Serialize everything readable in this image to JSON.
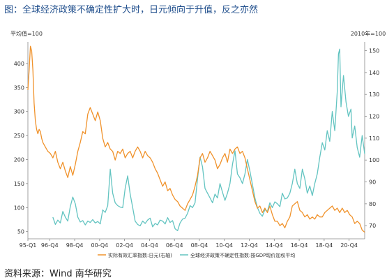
{
  "title": "图：全球经济政策不确定性扩大时，日元倾向于升值，反之亦然",
  "source": "资料来源：Wind  南华研究",
  "chart_data": {
    "type": "line",
    "left_axis": {
      "unit": "平均值=100",
      "ticks": [
        50,
        100,
        150,
        200,
        250,
        300,
        350,
        400
      ],
      "range": [
        35,
        445
      ]
    },
    "right_axis": {
      "unit": "2010年=100",
      "ticks": [
        70,
        80,
        90,
        100,
        110,
        120,
        130,
        140,
        150
      ],
      "range": [
        64,
        154
      ]
    },
    "x_ticks": [
      "95-Q1",
      "96-Q4",
      "98-Q4",
      "00-Q4",
      "02-Q4",
      "04-Q4",
      "06-Q4",
      "08-Q4",
      "10-Q4",
      "12-Q4",
      "14-Q4",
      "16-Q4",
      "18-Q4",
      "20-Q4"
    ],
    "x_tick_years": [
      1995.0,
      1996.75,
      1998.75,
      2000.75,
      2002.75,
      2004.75,
      2006.75,
      2008.75,
      2010.75,
      2012.75,
      2014.75,
      2016.75,
      2018.75,
      2020.75
    ],
    "x_range": [
      1995.0,
      2022.0
    ],
    "series": [
      {
        "name": "实际有效汇率指数:日元(右轴)",
        "axis": "right",
        "color": "#f0922b",
        "points": [
          [
            1995.0,
            132
          ],
          [
            1995.1,
            141
          ],
          [
            1995.2,
            152
          ],
          [
            1995.3,
            150
          ],
          [
            1995.4,
            141
          ],
          [
            1995.5,
            126
          ],
          [
            1995.6,
            118
          ],
          [
            1995.7,
            114
          ],
          [
            1995.8,
            112
          ],
          [
            1995.9,
            114
          ],
          [
            1996.0,
            113
          ],
          [
            1996.1,
            110
          ],
          [
            1996.2,
            108
          ],
          [
            1996.4,
            106
          ],
          [
            1996.6,
            104
          ],
          [
            1996.8,
            103
          ],
          [
            1997.0,
            101
          ],
          [
            1997.2,
            104
          ],
          [
            1997.4,
            99
          ],
          [
            1997.6,
            96
          ],
          [
            1997.8,
            99
          ],
          [
            1998.0,
            95
          ],
          [
            1998.2,
            92
          ],
          [
            1998.4,
            97
          ],
          [
            1998.6,
            93
          ],
          [
            1998.8,
            98
          ],
          [
            1999.0,
            104
          ],
          [
            1999.2,
            108
          ],
          [
            1999.4,
            113
          ],
          [
            1999.6,
            112
          ],
          [
            1999.8,
            121
          ],
          [
            2000.0,
            124
          ],
          [
            2000.2,
            121
          ],
          [
            2000.4,
            118
          ],
          [
            2000.6,
            122
          ],
          [
            2000.8,
            118
          ],
          [
            2001.0,
            110
          ],
          [
            2001.2,
            106
          ],
          [
            2001.4,
            108
          ],
          [
            2001.6,
            105
          ],
          [
            2001.8,
            104
          ],
          [
            2002.0,
            100
          ],
          [
            2002.2,
            104
          ],
          [
            2002.4,
            103
          ],
          [
            2002.6,
            105
          ],
          [
            2002.8,
            101
          ],
          [
            2003.0,
            103
          ],
          [
            2003.2,
            104
          ],
          [
            2003.4,
            101
          ],
          [
            2003.6,
            104
          ],
          [
            2003.8,
            106
          ],
          [
            2004.0,
            104
          ],
          [
            2004.2,
            101
          ],
          [
            2004.4,
            104
          ],
          [
            2004.6,
            102
          ],
          [
            2004.8,
            101
          ],
          [
            2005.0,
            99
          ],
          [
            2005.2,
            96
          ],
          [
            2005.4,
            94
          ],
          [
            2005.6,
            91
          ],
          [
            2005.8,
            88
          ],
          [
            2006.0,
            90
          ],
          [
            2006.2,
            86
          ],
          [
            2006.4,
            87
          ],
          [
            2006.6,
            84
          ],
          [
            2006.8,
            82
          ],
          [
            2007.0,
            81
          ],
          [
            2007.2,
            79
          ],
          [
            2007.4,
            78
          ],
          [
            2007.6,
            77
          ],
          [
            2007.8,
            80
          ],
          [
            2008.0,
            82
          ],
          [
            2008.2,
            84
          ],
          [
            2008.4,
            88
          ],
          [
            2008.6,
            93
          ],
          [
            2008.8,
            101
          ],
          [
            2009.0,
            103
          ],
          [
            2009.2,
            99
          ],
          [
            2009.4,
            101
          ],
          [
            2009.6,
            104
          ],
          [
            2009.8,
            102
          ],
          [
            2010.0,
            100
          ],
          [
            2010.2,
            96
          ],
          [
            2010.4,
            98
          ],
          [
            2010.6,
            101
          ],
          [
            2010.8,
            103
          ],
          [
            2011.0,
            99
          ],
          [
            2011.2,
            105
          ],
          [
            2011.4,
            103
          ],
          [
            2011.6,
            105
          ],
          [
            2011.8,
            106
          ],
          [
            2012.0,
            103
          ],
          [
            2012.2,
            104
          ],
          [
            2012.4,
            101
          ],
          [
            2012.6,
            96
          ],
          [
            2012.8,
            91
          ],
          [
            2013.0,
            86
          ],
          [
            2013.2,
            81
          ],
          [
            2013.4,
            78
          ],
          [
            2013.6,
            79
          ],
          [
            2013.8,
            76
          ],
          [
            2014.0,
            78
          ],
          [
            2014.2,
            76
          ],
          [
            2014.4,
            79
          ],
          [
            2014.6,
            75
          ],
          [
            2014.8,
            72
          ],
          [
            2015.0,
            72
          ],
          [
            2015.2,
            70
          ],
          [
            2015.4,
            71
          ],
          [
            2015.6,
            69
          ],
          [
            2015.8,
            72
          ],
          [
            2016.0,
            74
          ],
          [
            2016.2,
            79
          ],
          [
            2016.4,
            80
          ],
          [
            2016.6,
            81
          ],
          [
            2016.8,
            77
          ],
          [
            2017.0,
            76
          ],
          [
            2017.2,
            74
          ],
          [
            2017.4,
            75
          ],
          [
            2017.6,
            73
          ],
          [
            2017.8,
            74
          ],
          [
            2018.0,
            73
          ],
          [
            2018.2,
            75
          ],
          [
            2018.4,
            74
          ],
          [
            2018.6,
            74
          ],
          [
            2018.8,
            76
          ],
          [
            2019.0,
            77
          ],
          [
            2019.2,
            78
          ],
          [
            2019.4,
            79
          ],
          [
            2019.6,
            77
          ],
          [
            2019.8,
            78
          ],
          [
            2020.0,
            76
          ],
          [
            2020.2,
            78
          ],
          [
            2020.4,
            76
          ],
          [
            2020.6,
            77
          ],
          [
            2020.8,
            75
          ],
          [
            2021.0,
            74
          ],
          [
            2021.2,
            71
          ],
          [
            2021.4,
            72
          ],
          [
            2021.6,
            71
          ],
          [
            2021.8,
            68
          ],
          [
            2022.0,
            67
          ]
        ]
      },
      {
        "name": "全球经济政策不确定性指数:按GDP现价加权平均",
        "axis": "left",
        "color": "#63c4c1",
        "points": [
          [
            1997.0,
            80
          ],
          [
            1997.2,
            65
          ],
          [
            1997.4,
            74
          ],
          [
            1997.6,
            68
          ],
          [
            1997.8,
            92
          ],
          [
            1998.0,
            80
          ],
          [
            1998.2,
            72
          ],
          [
            1998.4,
            102
          ],
          [
            1998.6,
            122
          ],
          [
            1998.8,
            108
          ],
          [
            1999.0,
            80
          ],
          [
            1999.2,
            70
          ],
          [
            1999.4,
            73
          ],
          [
            1999.6,
            64
          ],
          [
            1999.8,
            72
          ],
          [
            2000.0,
            69
          ],
          [
            2000.2,
            75
          ],
          [
            2000.4,
            68
          ],
          [
            2000.6,
            71
          ],
          [
            2000.8,
            66
          ],
          [
            2001.0,
            95
          ],
          [
            2001.2,
            90
          ],
          [
            2001.4,
            104
          ],
          [
            2001.6,
            180
          ],
          [
            2001.8,
            130
          ],
          [
            2002.0,
            110
          ],
          [
            2002.2,
            104
          ],
          [
            2002.4,
            101
          ],
          [
            2002.6,
            100
          ],
          [
            2002.8,
            140
          ],
          [
            2003.0,
            166
          ],
          [
            2003.2,
            128
          ],
          [
            2003.4,
            100
          ],
          [
            2003.6,
            72
          ],
          [
            2003.8,
            65
          ],
          [
            2004.0,
            62
          ],
          [
            2004.2,
            72
          ],
          [
            2004.4,
            67
          ],
          [
            2004.6,
            74
          ],
          [
            2004.8,
            78
          ],
          [
            2005.0,
            60
          ],
          [
            2005.2,
            67
          ],
          [
            2005.4,
            64
          ],
          [
            2005.6,
            74
          ],
          [
            2005.8,
            72
          ],
          [
            2006.0,
            66
          ],
          [
            2006.2,
            79
          ],
          [
            2006.4,
            69
          ],
          [
            2006.6,
            73
          ],
          [
            2006.8,
            56
          ],
          [
            2007.0,
            52
          ],
          [
            2007.2,
            68
          ],
          [
            2007.4,
            76
          ],
          [
            2007.6,
            78
          ],
          [
            2007.8,
            88
          ],
          [
            2008.0,
            104
          ],
          [
            2008.2,
            100
          ],
          [
            2008.4,
            110
          ],
          [
            2008.6,
            160
          ],
          [
            2008.8,
            205
          ],
          [
            2009.0,
            185
          ],
          [
            2009.2,
            140
          ],
          [
            2009.4,
            130
          ],
          [
            2009.6,
            120
          ],
          [
            2009.8,
            110
          ],
          [
            2010.0,
            128
          ],
          [
            2010.2,
            120
          ],
          [
            2010.4,
            150
          ],
          [
            2010.6,
            132
          ],
          [
            2010.8,
            115
          ],
          [
            2011.0,
            130
          ],
          [
            2011.2,
            150
          ],
          [
            2011.4,
            190
          ],
          [
            2011.6,
            218
          ],
          [
            2011.8,
            170
          ],
          [
            2012.0,
            162
          ],
          [
            2012.2,
            150
          ],
          [
            2012.4,
            170
          ],
          [
            2012.6,
            200
          ],
          [
            2012.8,
            176
          ],
          [
            2013.0,
            148
          ],
          [
            2013.2,
            120
          ],
          [
            2013.4,
            100
          ],
          [
            2013.6,
            88
          ],
          [
            2013.8,
            82
          ],
          [
            2014.0,
            96
          ],
          [
            2014.2,
            92
          ],
          [
            2014.4,
            110
          ],
          [
            2014.6,
            100
          ],
          [
            2014.8,
            112
          ],
          [
            2015.0,
            108
          ],
          [
            2015.2,
            102
          ],
          [
            2015.4,
            130
          ],
          [
            2015.6,
            118
          ],
          [
            2015.8,
            120
          ],
          [
            2016.0,
            130
          ],
          [
            2016.2,
            150
          ],
          [
            2016.4,
            180
          ],
          [
            2016.6,
            150
          ],
          [
            2016.8,
            140
          ],
          [
            2017.0,
            180
          ],
          [
            2017.2,
            160
          ],
          [
            2017.4,
            130
          ],
          [
            2017.6,
            145
          ],
          [
            2017.8,
            125
          ],
          [
            2018.0,
            150
          ],
          [
            2018.2,
            170
          ],
          [
            2018.4,
            205
          ],
          [
            2018.6,
            235
          ],
          [
            2018.8,
            220
          ],
          [
            2019.0,
            260
          ],
          [
            2019.2,
            238
          ],
          [
            2019.4,
            300
          ],
          [
            2019.6,
            260
          ],
          [
            2019.8,
            340
          ],
          [
            2019.9,
            420
          ],
          [
            2020.0,
            430
          ],
          [
            2020.1,
            310
          ],
          [
            2020.3,
            375
          ],
          [
            2020.5,
            320
          ],
          [
            2020.7,
            290
          ],
          [
            2020.9,
            305
          ],
          [
            2021.0,
            245
          ],
          [
            2021.2,
            270
          ],
          [
            2021.4,
            225
          ],
          [
            2021.6,
            205
          ],
          [
            2021.8,
            250
          ],
          [
            2022.0,
            212
          ]
        ]
      }
    ]
  }
}
